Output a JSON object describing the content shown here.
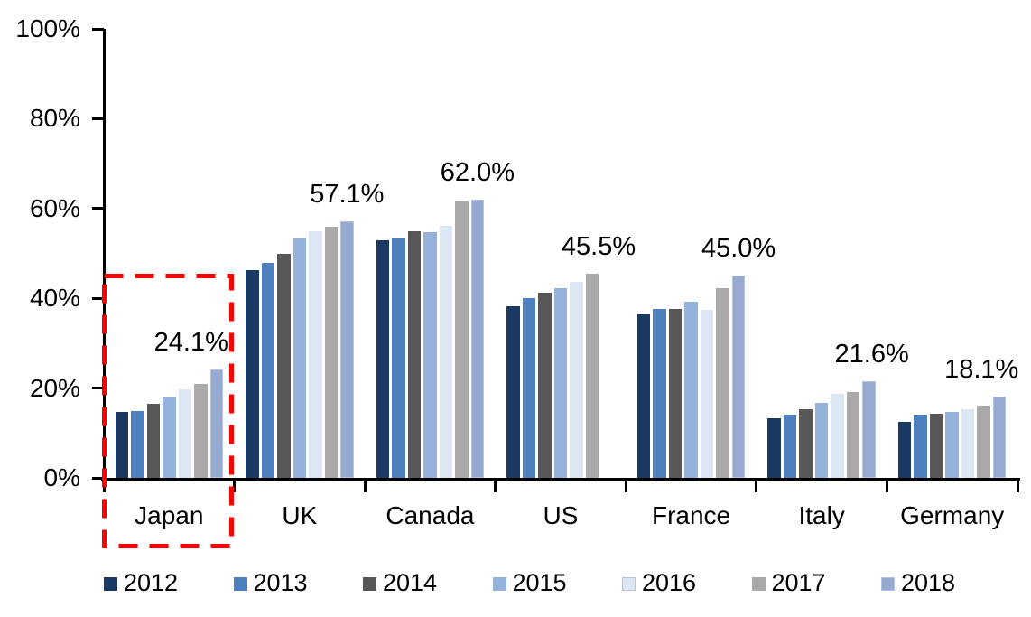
{
  "chart_data": {
    "type": "bar",
    "title": "",
    "xlabel": "",
    "ylabel": "",
    "ylim": [
      0,
      100
    ],
    "yticks": [
      "0%",
      "20%",
      "40%",
      "60%",
      "80%",
      "100%"
    ],
    "grid": false,
    "legend_position": "bottom",
    "categories": [
      "Japan",
      "UK",
      "Canada",
      "US",
      "France",
      "Italy",
      "Germany"
    ],
    "series": [
      {
        "name": "2012",
        "color": "#1b3a63",
        "values": [
          14.6,
          46.3,
          53.0,
          38.2,
          36.5,
          13.2,
          12.5
        ]
      },
      {
        "name": "2013",
        "color": "#4e80be",
        "values": [
          14.9,
          47.9,
          53.4,
          40.0,
          37.7,
          14.0,
          14.0
        ]
      },
      {
        "name": "2014",
        "color": "#575757",
        "values": [
          16.4,
          50.0,
          54.9,
          41.2,
          37.6,
          15.2,
          14.3
        ]
      },
      {
        "name": "2015",
        "color": "#95b3da",
        "values": [
          17.9,
          53.3,
          54.7,
          42.3,
          39.3,
          16.7,
          14.7
        ]
      },
      {
        "name": "2016",
        "color": "#dde7f3",
        "values": [
          19.8,
          54.9,
          56.2,
          43.6,
          37.4,
          18.8,
          15.3
        ]
      },
      {
        "name": "2017",
        "color": "#aaa8a8",
        "values": [
          21.0,
          56.0,
          61.6,
          45.5,
          42.3,
          19.1,
          16.0
        ]
      },
      {
        "name": "2018",
        "color": "#96a9d1",
        "values": [
          24.1,
          57.1,
          62.0,
          null,
          45.0,
          21.6,
          18.1
        ]
      }
    ],
    "value_labels": [
      "24.1%",
      "57.1%",
      "62.0%",
      "45.5%",
      "45.0%",
      "21.6%",
      "18.1%"
    ],
    "annotations": [
      {
        "type": "dashed-rectangle",
        "category": "Japan",
        "color": "#ff0000"
      }
    ]
  }
}
